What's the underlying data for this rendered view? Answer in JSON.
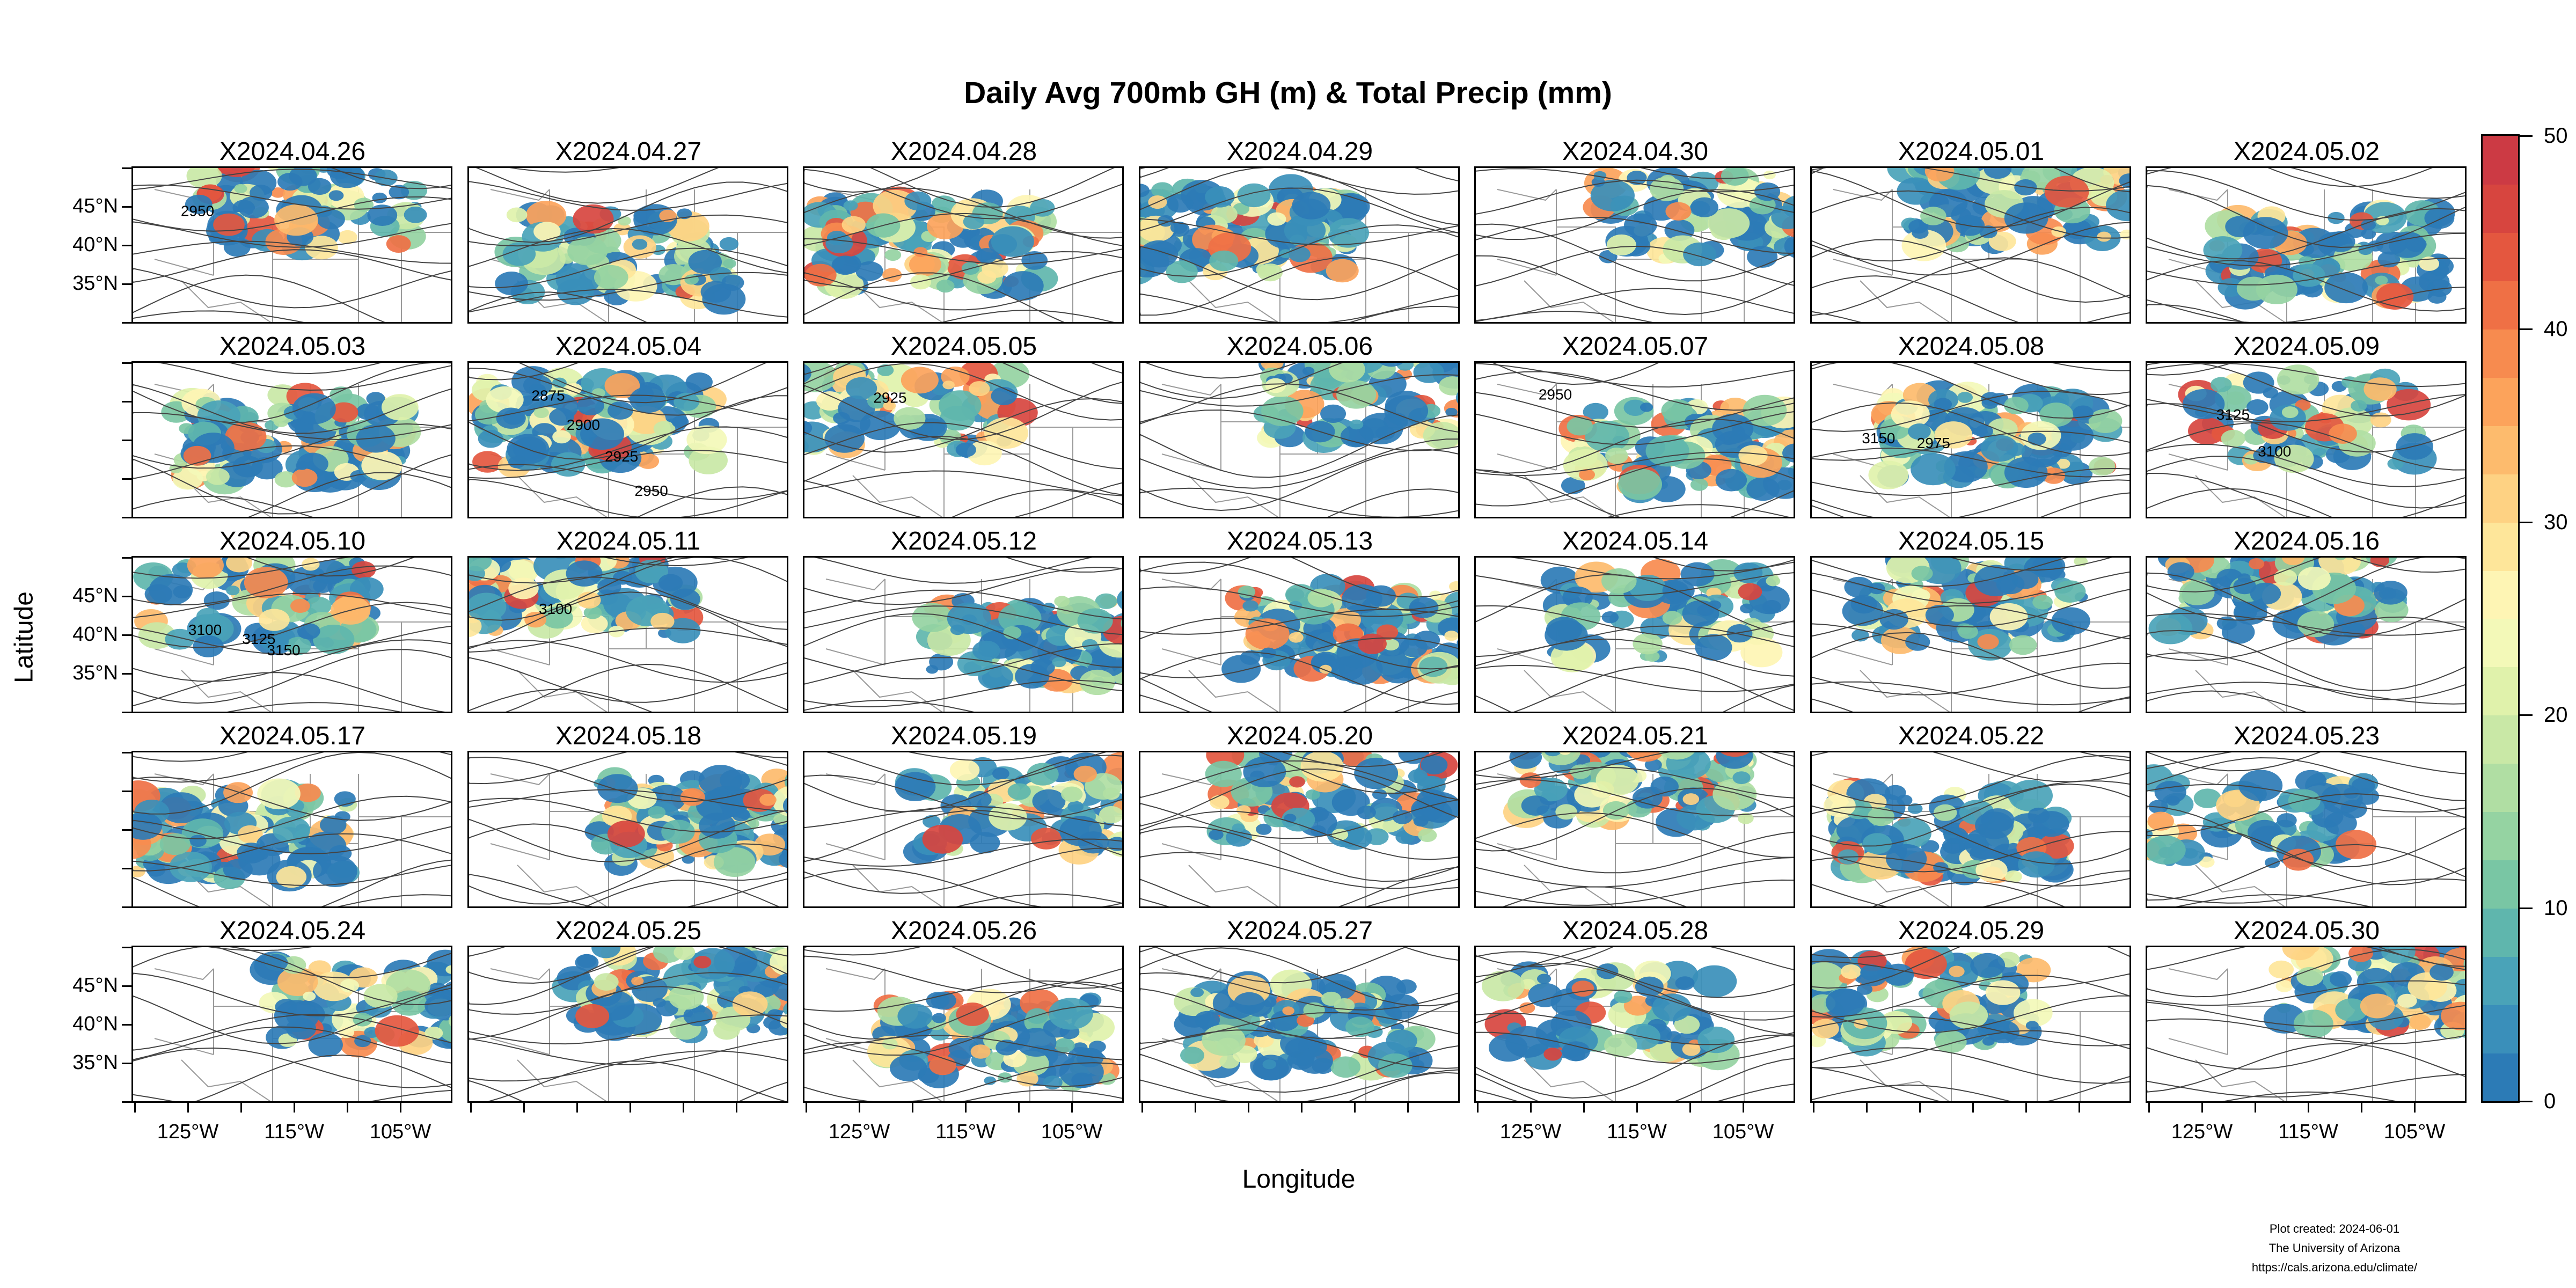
{
  "title": "Daily Avg 700mb GH (m) & Total Precip (mm)",
  "chart_data": {
    "type": "heatmap",
    "layout": "small multiples, 5 rows x 7 columns of map panels",
    "panels": [
      {
        "date": "X2024.04.26",
        "contour_labels": [
          "2950"
        ]
      },
      {
        "date": "X2024.04.27",
        "contour_labels": []
      },
      {
        "date": "X2024.04.28",
        "contour_labels": []
      },
      {
        "date": "X2024.04.29",
        "contour_labels": []
      },
      {
        "date": "X2024.04.30",
        "contour_labels": []
      },
      {
        "date": "X2024.05.01",
        "contour_labels": []
      },
      {
        "date": "X2024.05.02",
        "contour_labels": []
      },
      {
        "date": "X2024.05.03",
        "contour_labels": []
      },
      {
        "date": "X2024.05.04",
        "contour_labels": [
          "2875",
          "2900",
          "2925",
          "2950"
        ]
      },
      {
        "date": "X2024.05.05",
        "contour_labels": [
          "2925"
        ]
      },
      {
        "date": "X2024.05.06",
        "contour_labels": []
      },
      {
        "date": "X2024.05.07",
        "contour_labels": [
          "2950"
        ]
      },
      {
        "date": "X2024.05.08",
        "contour_labels": [
          "3150",
          "2975"
        ]
      },
      {
        "date": "X2024.05.09",
        "contour_labels": [
          "3125",
          "3100"
        ]
      },
      {
        "date": "X2024.05.10",
        "contour_labels": [
          "3100",
          "3125",
          "3150"
        ]
      },
      {
        "date": "X2024.05.11",
        "contour_labels": [
          "3100"
        ]
      },
      {
        "date": "X2024.05.12",
        "contour_labels": []
      },
      {
        "date": "X2024.05.13",
        "contour_labels": []
      },
      {
        "date": "X2024.05.14",
        "contour_labels": []
      },
      {
        "date": "X2024.05.15",
        "contour_labels": []
      },
      {
        "date": "X2024.05.16",
        "contour_labels": []
      },
      {
        "date": "X2024.05.17",
        "contour_labels": []
      },
      {
        "date": "X2024.05.18",
        "contour_labels": []
      },
      {
        "date": "X2024.05.19",
        "contour_labels": []
      },
      {
        "date": "X2024.05.20",
        "contour_labels": []
      },
      {
        "date": "X2024.05.21",
        "contour_labels": []
      },
      {
        "date": "X2024.05.22",
        "contour_labels": []
      },
      {
        "date": "X2024.05.23",
        "contour_labels": []
      },
      {
        "date": "X2024.05.24",
        "contour_labels": []
      },
      {
        "date": "X2024.05.25",
        "contour_labels": []
      },
      {
        "date": "X2024.05.26",
        "contour_labels": []
      },
      {
        "date": "X2024.05.27",
        "contour_labels": []
      },
      {
        "date": "X2024.05.28",
        "contour_labels": []
      },
      {
        "date": "X2024.05.29",
        "contour_labels": []
      },
      {
        "date": "X2024.05.30",
        "contour_labels": []
      }
    ],
    "xlabel": "Longitude",
    "ylabel": "Latitude",
    "x_ticks": [
      "125°W",
      "115°W",
      "105°W"
    ],
    "y_ticks": [
      "45°N",
      "40°N",
      "35°N"
    ],
    "colorbar": {
      "label_values": [
        "50",
        "40",
        "30",
        "20",
        "10",
        "0"
      ],
      "range": [
        0,
        50
      ],
      "colors": [
        "#2c7bb6",
        "#3a8fba",
        "#4aa3b8",
        "#5fb6ad",
        "#79c6a4",
        "#95d3a2",
        "#b0dea3",
        "#c9e8a6",
        "#e0f2ab",
        "#f3f9b8",
        "#fef5b4",
        "#fee69a",
        "#fed283",
        "#fdbb6d",
        "#fca35b",
        "#f78b4f",
        "#ef7045",
        "#e4573f",
        "#d7453f",
        "#cc3a44"
      ]
    }
  },
  "credits": {
    "line1": "Plot created: 2024-06-01",
    "line2": "The University of Arizona",
    "line3": "https://cals.arizona.edu/climate/"
  }
}
